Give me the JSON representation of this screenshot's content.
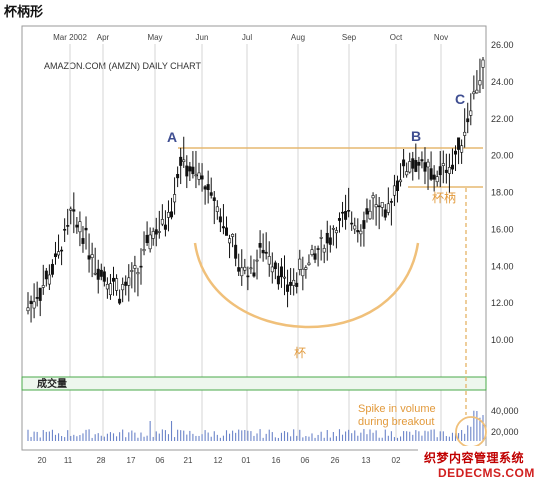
{
  "page_title": "杯柄形",
  "chart_data": {
    "type": "candlestick",
    "title": "AMAZON.COM (AMZN) DAILY CHART",
    "x_month_labels": [
      "Mar 2002",
      "Apr",
      "May",
      "Jun",
      "Jul",
      "Aug",
      "Sep",
      "Oct",
      "Nov"
    ],
    "x_day_labels": [
      "20",
      "11",
      "28",
      "17",
      "06",
      "21",
      "12",
      "01",
      "16",
      "06",
      "26",
      "13",
      "02",
      "21",
      "11"
    ],
    "y_ticks": [
      "26.00",
      "24.00",
      "22.00",
      "20.00",
      "18.00",
      "16.00",
      "14.00",
      "12.00",
      "10.00"
    ],
    "ylim": [
      9,
      26.5
    ],
    "volume_ticks": [
      "40,000",
      "20,000"
    ],
    "volume_label": "成交量",
    "price_path": [
      [
        0,
        11.8
      ],
      [
        6,
        13.2
      ],
      [
        10,
        14.6
      ],
      [
        14,
        16.6
      ],
      [
        18,
        16.0
      ],
      [
        22,
        14.2
      ],
      [
        27,
        13.2
      ],
      [
        31,
        12.6
      ],
      [
        36,
        13.6
      ],
      [
        40,
        15.6
      ],
      [
        44,
        16.2
      ],
      [
        47,
        17.4
      ],
      [
        50,
        19.8
      ],
      [
        53,
        19.2
      ],
      [
        57,
        18.6
      ],
      [
        61,
        17.6
      ],
      [
        65,
        16.0
      ],
      [
        69,
        14.0
      ],
      [
        73,
        13.8
      ],
      [
        77,
        15.0
      ],
      [
        81,
        14.2
      ],
      [
        85,
        12.8
      ],
      [
        89,
        13.6
      ],
      [
        93,
        14.4
      ],
      [
        97,
        15.2
      ],
      [
        101,
        16.0
      ],
      [
        105,
        16.8
      ],
      [
        109,
        16.2
      ],
      [
        113,
        17.4
      ],
      [
        117,
        16.4
      ],
      [
        121,
        18.8
      ],
      [
        124,
        19.4
      ],
      [
        127,
        19.8
      ],
      [
        130,
        19.2
      ],
      [
        133,
        18.8
      ],
      [
        136,
        19.2
      ],
      [
        139,
        19.6
      ],
      [
        141,
        20.2
      ],
      [
        143,
        21.6
      ],
      [
        145,
        22.8
      ],
      [
        147,
        24.0
      ],
      [
        149,
        24.6
      ]
    ],
    "annotations": {
      "point_a": "A",
      "point_b": "B",
      "point_c": "C",
      "cup": "杯",
      "handle": "杯柄",
      "spike_line1": "Spike in volume",
      "spike_line2": "during breakout"
    },
    "resistance_level": 20.4,
    "handle_low": 18.2,
    "colors": {
      "candles": "#111111",
      "cup": "#f0c07a",
      "guides": "#e6b870",
      "gridlines": "#cfcfcf",
      "volume": "#6b84c9",
      "volume_band": "#4aa84a",
      "annotation_text": "#e29a3c",
      "letters": "#3f4e91"
    }
  },
  "watermark": {
    "line1": "织梦内容管理系统",
    "line2": "DEDECMS.COM"
  }
}
